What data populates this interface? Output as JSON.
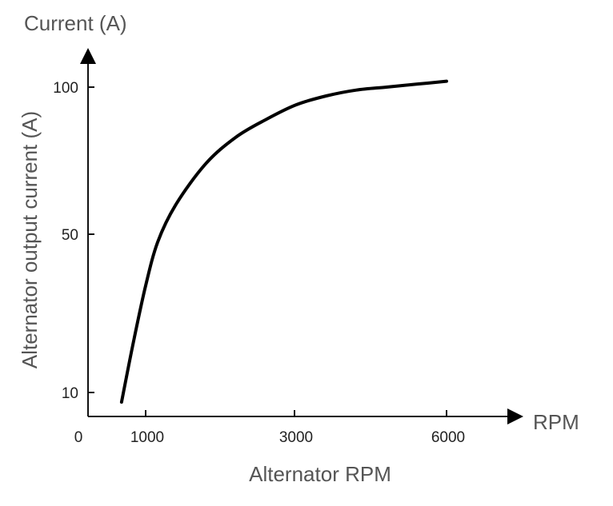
{
  "chart_data": {
    "type": "line",
    "y_unit_label": "Current (A)",
    "x_unit_label": "RPM",
    "ylabel": "Alternator output current (A)",
    "xlabel": "Alternator RPM",
    "origin_label": "0",
    "x_ticks": [
      1000,
      3000,
      6000
    ],
    "x_tick_labels": [
      "1000",
      "3000",
      "6000"
    ],
    "y_ticks": [
      10,
      50,
      100
    ],
    "y_tick_labels": [
      "10",
      "50",
      "100"
    ],
    "grid": false,
    "series": [
      {
        "x": [
          600,
          800,
          1000,
          1200,
          1500,
          2000,
          2500,
          3000,
          3500,
          4000,
          4500,
          5000,
          5500,
          6000
        ],
        "y": [
          7,
          23,
          37,
          48,
          60,
          74,
          83,
          89,
          94,
          97,
          99,
          100,
          101,
          102
        ]
      }
    ]
  }
}
